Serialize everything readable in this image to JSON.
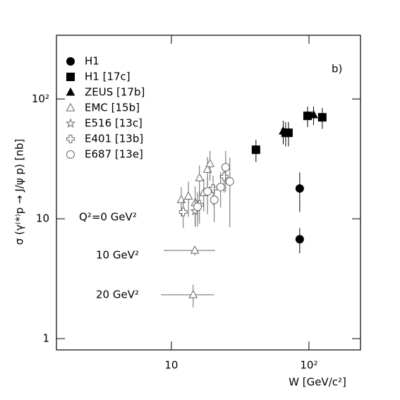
{
  "chart_data": {
    "type": "scatter",
    "title": "b)",
    "x_label": "W  [GeV/c²]",
    "y_label": "σ (γ⁽*⁾p → J/ψ p)  [nb]",
    "log_x": true,
    "log_y": true,
    "xlim": [
      1.46,
      237
    ],
    "ylim": [
      0.805,
      340
    ],
    "xticks": [
      10,
      {
        "value": 100,
        "label": "10²"
      }
    ],
    "yticks": [
      1,
      10,
      {
        "value": 100,
        "label": "10²"
      }
    ],
    "legend": "upper left",
    "annotations": [
      "Q²=0 GeV²",
      "10 GeV²",
      "20 GeV²"
    ],
    "series": [
      {
        "name": "H1",
        "marker": "circle-filled",
        "color": "#000000",
        "x": [
          85.7,
          85.7
        ],
        "values": [
          17.9,
          6.75
        ],
        "errors": [
          6.5,
          1.6
        ]
      },
      {
        "name": "H1 [17c]",
        "marker": "square-filled",
        "color": "#000000",
        "x": [
          41.2,
          67.7,
          71,
          97.7,
          125
        ],
        "values": [
          37.7,
          52.2,
          52.2,
          72.3,
          70.3
        ],
        "errors": [
          8,
          12,
          12,
          14,
          14
        ]
      },
      {
        "name": "ZEUS [17b]",
        "marker": "triangle-filled",
        "color": "#000000",
        "x": [
          65,
          108
        ],
        "values": [
          53.8,
          73.5
        ],
        "errors": [
          12,
          13
        ]
      },
      {
        "name": "EMC [15b]",
        "marker": "triangle-open",
        "color": "#666666",
        "x": [
          11.8,
          13.3,
          14.9,
          16.0,
          17.2,
          18.3,
          19.1,
          14.8,
          14.4
        ],
        "values": [
          14.4,
          15.4,
          13.6,
          21.9,
          16.5,
          25.8,
          28.8,
          5.44,
          2.32
        ],
        "errors": [
          4,
          5,
          5,
          6,
          5,
          7,
          8,
          0.5,
          0.5
        ],
        "xerr": [
          null,
          null,
          null,
          null,
          null,
          null,
          null,
          6,
          6
        ]
      },
      {
        "name": "E516 [13c]",
        "marker": "star-open",
        "color": "#666666",
        "x": [
          14.9
        ],
        "values": [
          11.6
        ],
        "errors": [
          3
        ]
      },
      {
        "name": "E401 [13b]",
        "marker": "cross-open",
        "color": "#666666",
        "x": [
          12.2,
          16.0,
          20.1,
          24.2
        ],
        "values": [
          11.4,
          13.1,
          17.9,
          22.5
        ],
        "errors": [
          3,
          4,
          5,
          6
        ]
      },
      {
        "name": "E687 [13e]",
        "marker": "circle-open",
        "color": "#666666",
        "x": [
          15.5,
          18.3,
          20.5,
          22.8,
          24.8,
          26.6
        ],
        "values": [
          12.6,
          16.9,
          14.4,
          18.4,
          26.9,
          20.5
        ],
        "errors": [
          4,
          6,
          5,
          6,
          10,
          12
        ]
      }
    ]
  }
}
